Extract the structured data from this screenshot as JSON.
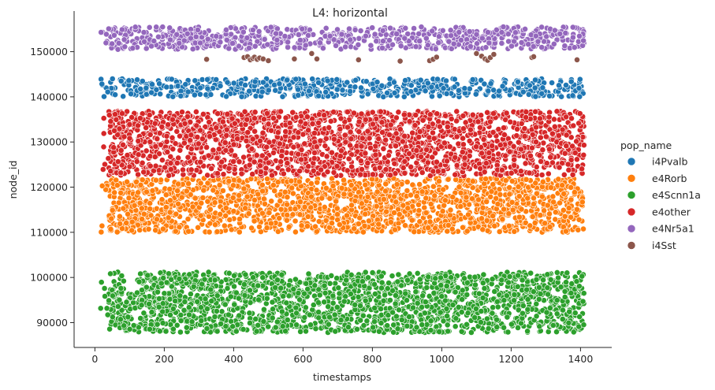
{
  "chart_data": {
    "type": "scatter",
    "title": "L4: horizontal",
    "xlabel": "timestamps",
    "ylabel": "node_id",
    "xlim": [
      -60,
      1490
    ],
    "ylim": [
      84500,
      159000
    ],
    "xticks": [
      0,
      200,
      400,
      600,
      800,
      1000,
      1200,
      1400
    ],
    "yticks": [
      90000,
      100000,
      110000,
      120000,
      130000,
      140000,
      150000
    ],
    "grid": false,
    "legend": {
      "title": "pop_name",
      "placement": "right"
    },
    "x_range_observed": [
      15,
      1410
    ],
    "series": [
      {
        "name": "i4Pvalb",
        "color": "#1f77b4",
        "y_range": [
          140000,
          144000
        ],
        "density": "high"
      },
      {
        "name": "e4Rorb",
        "color": "#ff7f0e",
        "y_range": [
          110000,
          122000
        ],
        "density": "high"
      },
      {
        "name": "e4Scnn1a",
        "color": "#2ca02c",
        "y_range": [
          87800,
          101200
        ],
        "density": "high"
      },
      {
        "name": "e4other",
        "color": "#d62728",
        "y_range": [
          122500,
          136800
        ],
        "density": "high"
      },
      {
        "name": "e4Nr5a1",
        "color": "#9467bd",
        "y_range": [
          150500,
          155500
        ],
        "density": "high"
      },
      {
        "name": "i4Sst",
        "color": "#8c564b",
        "y_range": [
          147800,
          149800
        ],
        "density": "sparse",
        "points": [
          [
            322,
            148300
          ],
          [
            430,
            148700
          ],
          [
            440,
            148900
          ],
          [
            448,
            148200
          ],
          [
            455,
            148500
          ],
          [
            460,
            148800
          ],
          [
            468,
            148300
          ],
          [
            475,
            148600
          ],
          [
            485,
            148400
          ],
          [
            500,
            148000
          ],
          [
            575,
            148400
          ],
          [
            625,
            149600
          ],
          [
            640,
            148400
          ],
          [
            760,
            148200
          ],
          [
            880,
            147900
          ],
          [
            965,
            148000
          ],
          [
            975,
            148300
          ],
          [
            985,
            148800
          ],
          [
            1100,
            149600
          ],
          [
            1115,
            149000
          ],
          [
            1125,
            148400
          ],
          [
            1132,
            148100
          ],
          [
            1140,
            148700
          ],
          [
            1150,
            149400
          ],
          [
            1260,
            148700
          ],
          [
            1265,
            148900
          ],
          [
            1390,
            148200
          ]
        ]
      }
    ]
  }
}
